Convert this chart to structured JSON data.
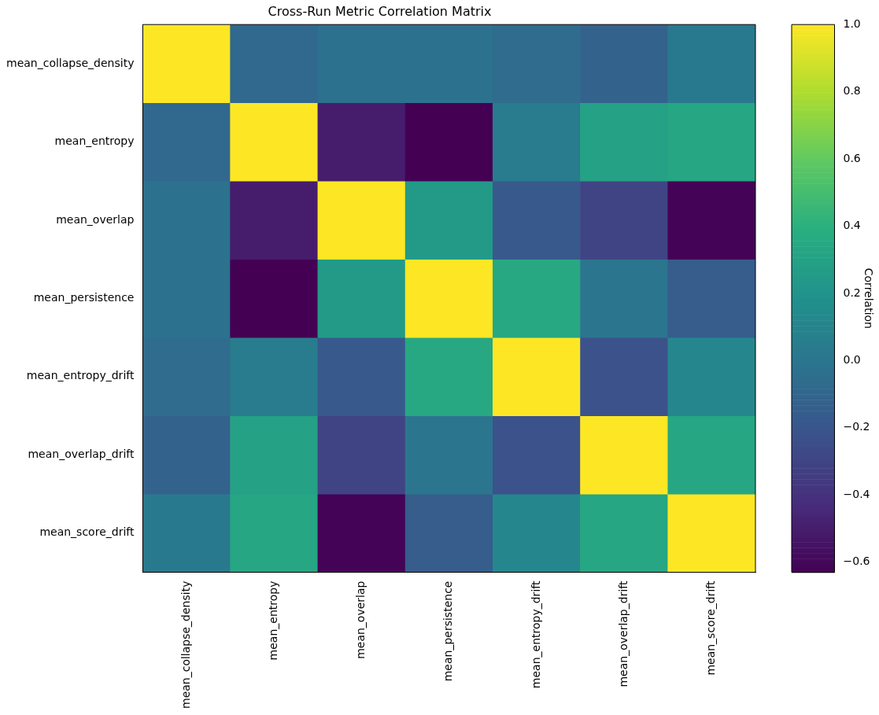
{
  "chart_data": {
    "type": "heatmap",
    "title": "Cross-Run Metric Correlation Matrix",
    "categories": [
      "mean_collapse_density",
      "mean_entropy",
      "mean_overlap",
      "mean_persistence",
      "mean_entropy_drift",
      "mean_overlap_drift",
      "mean_score_drift"
    ],
    "y_categories": [
      "mean_collapse_density",
      "mean_entropy",
      "mean_overlap",
      "mean_persistence",
      "mean_entropy_drift",
      "mean_overlap_drift",
      "mean_score_drift"
    ],
    "cells": [
      [
        1,
        -0.08,
        -0.02,
        -0.02,
        -0.06,
        -0.12,
        0.03
      ],
      [
        -0.08,
        1,
        -0.5,
        -0.63,
        0.05,
        0.3,
        0.33
      ],
      [
        -0.02,
        -0.5,
        1,
        0.25,
        -0.18,
        -0.3,
        -0.62
      ],
      [
        -0.02,
        -0.63,
        0.25,
        1,
        0.35,
        0.0,
        -0.15
      ],
      [
        -0.06,
        0.05,
        -0.18,
        0.35,
        1,
        -0.22,
        0.12
      ],
      [
        -0.12,
        0.3,
        -0.3,
        0.0,
        -0.22,
        1,
        0.33
      ],
      [
        0.03,
        0.33,
        -0.62,
        -0.15,
        0.12,
        0.33,
        1
      ]
    ],
    "clim": [
      -0.63,
      1
    ],
    "cticks": [
      {
        "value": -0.6,
        "label": "−0.6"
      },
      {
        "value": -0.4,
        "label": "−0.4"
      },
      {
        "value": -0.2,
        "label": "−0.2"
      },
      {
        "value": 0,
        "label": "0.0"
      },
      {
        "value": 0.2,
        "label": "0.2"
      },
      {
        "value": 0.4,
        "label": "0.4"
      },
      {
        "value": 0.6,
        "label": "0.6"
      },
      {
        "value": 0.8,
        "label": "0.8"
      },
      {
        "value": 1,
        "label": "1.0"
      }
    ],
    "clabel": "Correlation"
  }
}
